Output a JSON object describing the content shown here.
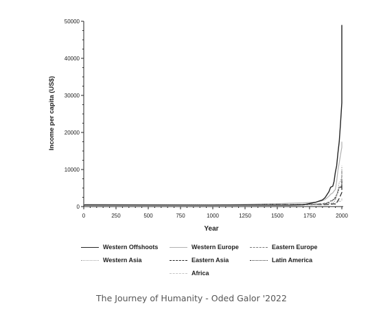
{
  "caption": "The Journey of Humanity - Oded Galor '2022",
  "chart_data": {
    "type": "line",
    "title": "",
    "xlabel": "Year",
    "ylabel": "Income per capita (US$)",
    "xlim": [
      0,
      2000
    ],
    "ylim": [
      0,
      50000
    ],
    "xticks": [
      0,
      250,
      500,
      750,
      1000,
      1250,
      1500,
      1750,
      2000
    ],
    "yticks": [
      0,
      10000,
      20000,
      30000,
      40000,
      50000
    ],
    "grid": false,
    "legend_position": "bottom",
    "series": [
      {
        "name": "Western Offshoots",
        "color": "#222222",
        "dash": "solid",
        "x": [
          0,
          1000,
          1500,
          1600,
          1700,
          1800,
          1850,
          1870,
          1900,
          1913,
          1930,
          1940,
          1950,
          1960,
          1970,
          1980,
          1990,
          2000,
          2010,
          2018
        ],
        "y": [
          400,
          400,
          400,
          400,
          470,
          1200,
          1800,
          2400,
          4000,
          5200,
          5500,
          6800,
          9300,
          11000,
          14500,
          17500,
          22500,
          28000,
          33500,
          49000
        ]
      },
      {
        "name": "Western Europe",
        "color": "#b0b0b0",
        "dash": "solid",
        "x": [
          0,
          1000,
          1500,
          1600,
          1700,
          1800,
          1850,
          1870,
          1900,
          1913,
          1930,
          1940,
          1950,
          1960,
          1970,
          1980,
          1990,
          2000,
          2010,
          2018
        ],
        "y": [
          600,
          450,
          800,
          900,
          1000,
          1200,
          1600,
          1900,
          2800,
          3300,
          3700,
          4200,
          4600,
          6800,
          9800,
          11800,
          14000,
          16000,
          17000,
          17500
        ]
      },
      {
        "name": "Eastern Europe",
        "color": "#777777",
        "dash": "dash",
        "x": [
          0,
          1000,
          1500,
          1600,
          1700,
          1800,
          1850,
          1870,
          1900,
          1913,
          1930,
          1940,
          1950,
          1960,
          1970,
          1980,
          1990,
          2000,
          2010,
          2018
        ],
        "y": [
          400,
          400,
          500,
          550,
          600,
          700,
          800,
          900,
          1200,
          1500,
          1600,
          2000,
          2100,
          3100,
          4300,
          5200,
          5400,
          6000,
          8500,
          10000
        ]
      },
      {
        "name": "Western Asia",
        "color": "#a0a0a0",
        "dash": "dot",
        "x": [
          0,
          1000,
          1500,
          1600,
          1700,
          1800,
          1850,
          1870,
          1900,
          1913,
          1930,
          1940,
          1950,
          1960,
          1970,
          1980,
          1990,
          2000,
          2010,
          2018
        ],
        "y": [
          500,
          500,
          550,
          560,
          580,
          600,
          650,
          700,
          800,
          900,
          1000,
          1200,
          1800,
          2800,
          4500,
          6500,
          6800,
          8000,
          9500,
          11000
        ]
      },
      {
        "name": "Eastern Asia",
        "color": "#222222",
        "dash": "longdash",
        "x": [
          0,
          1000,
          1500,
          1600,
          1700,
          1800,
          1850,
          1870,
          1900,
          1913,
          1930,
          1940,
          1950,
          1960,
          1970,
          1980,
          1990,
          2000,
          2010,
          2018
        ],
        "y": [
          450,
          450,
          560,
          570,
          570,
          580,
          560,
          540,
          600,
          650,
          700,
          750,
          650,
          1000,
          1600,
          2200,
          3000,
          3800,
          5200,
          7000
        ]
      },
      {
        "name": "Latin America",
        "color": "#333333",
        "dash": "shortdash",
        "x": [
          0,
          1000,
          1500,
          1600,
          1700,
          1800,
          1850,
          1870,
          1900,
          1913,
          1930,
          1940,
          1950,
          1960,
          1970,
          1980,
          1990,
          2000,
          2010,
          2018
        ],
        "y": [
          400,
          400,
          420,
          450,
          530,
          650,
          700,
          750,
          1100,
          1500,
          1800,
          2000,
          2500,
          3200,
          3900,
          5200,
          5000,
          5800,
          7000,
          7500
        ]
      },
      {
        "name": "Africa",
        "color": "#c4c4c4",
        "dash": "dash",
        "x": [
          0,
          1000,
          1500,
          1600,
          1700,
          1800,
          1850,
          1870,
          1900,
          1913,
          1930,
          1940,
          1950,
          1960,
          1970,
          1980,
          1990,
          2000,
          2010,
          2018
        ],
        "y": [
          400,
          400,
          420,
          420,
          420,
          450,
          480,
          500,
          600,
          700,
          800,
          850,
          900,
          1100,
          1400,
          1500,
          1400,
          1500,
          2000,
          2200
        ]
      }
    ]
  }
}
